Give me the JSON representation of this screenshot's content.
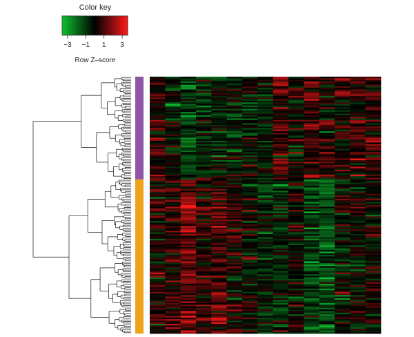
{
  "chart_data": {
    "type": "heatmap",
    "color_key": {
      "title": "Color key",
      "xlabel": "Row Z–score",
      "ticks": [
        -3,
        -1,
        1,
        3
      ],
      "tick_labels": [
        "−3",
        "−1",
        "1",
        "3"
      ],
      "range": [
        -3.6,
        3.6
      ],
      "colors": {
        "low": "#10c030",
        "mid": "#000000",
        "high": "#ff1a1a"
      }
    },
    "n_columns": 15,
    "clusters": [
      {
        "color": "#8e57a8",
        "rows": 64
      },
      {
        "color": "#f0a21a",
        "rows": 96
      }
    ],
    "column_pattern": {
      "cluster_1": [
        0.5,
        -0.5,
        -1.5,
        -0.8,
        -0.5,
        -0.6,
        -0.4,
        -0.5,
        1.2,
        -0.2,
        1.0,
        0.5,
        0.3,
        0.6,
        0.7
      ],
      "cluster_2": [
        0.3,
        0.6,
        1.7,
        0.5,
        1.1,
        0.3,
        -0.2,
        -0.6,
        -0.8,
        0.2,
        -1.4,
        -1.5,
        -0.3,
        -0.2,
        0.0
      ]
    },
    "dendrogram": {
      "orientation": "left",
      "show": true
    },
    "grid": false
  }
}
